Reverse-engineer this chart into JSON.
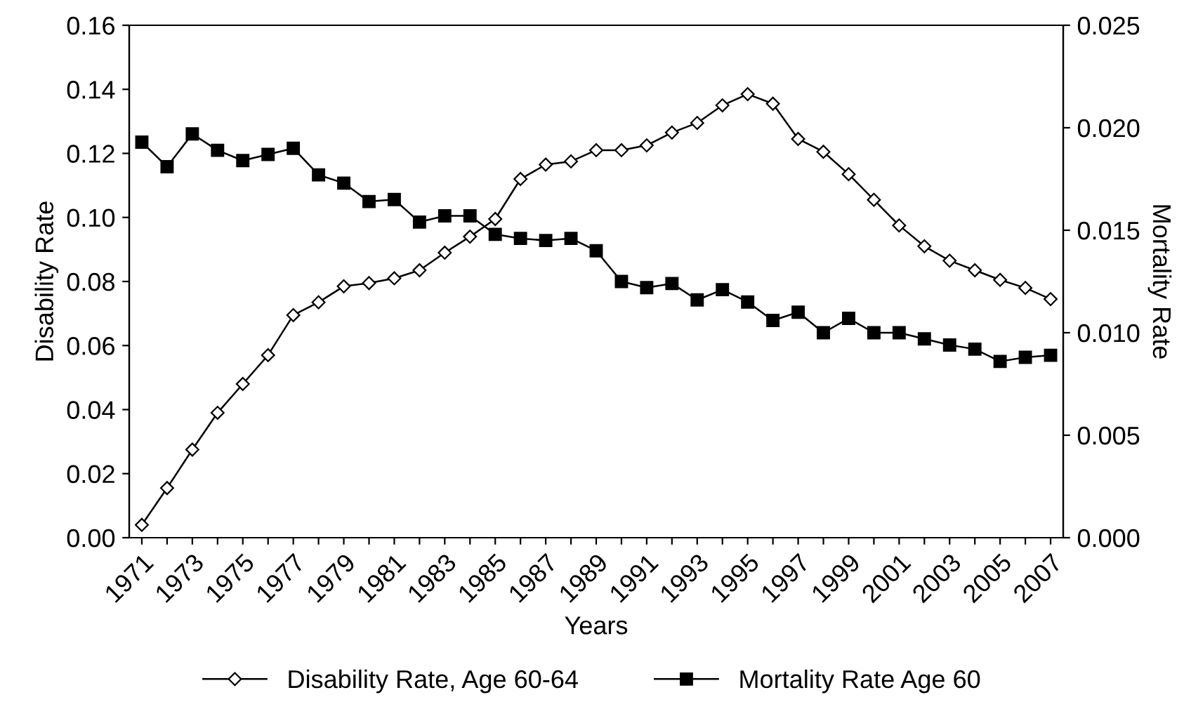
{
  "chart_data": {
    "type": "line",
    "xlabel": "Years",
    "ylabel": "Disability Rate",
    "y2label": "Mortality Rate",
    "categories": [
      "1971",
      null,
      "1973",
      null,
      "1975",
      null,
      "1977",
      null,
      "1979",
      null,
      "1981",
      null,
      "1983",
      null,
      "1985",
      null,
      "1987",
      null,
      "1989",
      null,
      "1991",
      null,
      "1993",
      null,
      "1995",
      null,
      "1997",
      null,
      "1999",
      null,
      "2001",
      null,
      "2003",
      null,
      "2005",
      null,
      "2007"
    ],
    "series": [
      {
        "name": "Disability Rate, Age 60-64",
        "color": "#000000",
        "marker": "diamond",
        "values": [
          0.004,
          0.0155,
          0.0275,
          0.039,
          0.048,
          0.057,
          0.0695,
          0.0735,
          0.0785,
          0.0795,
          0.081,
          0.0835,
          0.089,
          0.094,
          0.0995,
          0.112,
          0.1165,
          0.1175,
          0.121,
          0.121,
          0.1225,
          0.1265,
          0.1295,
          0.135,
          0.1385,
          0.1355,
          0.1245,
          0.1205,
          0.1135,
          0.1055,
          0.0975,
          0.091,
          0.0865,
          0.0835,
          0.0805,
          0.078,
          0.0745
        ]
      },
      {
        "name": "Mortality Rate Age 60",
        "color": "#000000",
        "marker": "square",
        "axis": "y2",
        "values": [
          0.0193,
          0.0181,
          0.0197,
          0.0189,
          0.0184,
          0.0187,
          0.019,
          0.0177,
          0.0173,
          0.0164,
          0.0165,
          0.0154,
          0.0157,
          0.0157,
          0.0148,
          0.0146,
          0.0145,
          0.0146,
          0.014,
          0.0125,
          0.0122,
          0.0124,
          0.0116,
          0.0121,
          0.0115,
          0.0106,
          0.011,
          0.01,
          0.0107,
          0.01,
          0.01,
          0.0097,
          0.0094,
          0.0092,
          0.0086,
          0.0088,
          0.0089
        ]
      }
    ],
    "ylim": [
      0,
      0.16
    ],
    "yticks": [
      {
        "value": 0,
        "label": "0.00"
      },
      {
        "value": 0.02,
        "label": "0.02"
      },
      {
        "value": 0.04,
        "label": "0.04"
      },
      {
        "value": 0.06,
        "label": "0.06"
      },
      {
        "value": 0.08,
        "label": "0.08"
      },
      {
        "value": 0.1,
        "label": "0.10"
      },
      {
        "value": 0.12,
        "label": "0.12"
      },
      {
        "value": 0.14,
        "label": "0.14"
      },
      {
        "value": 0.16,
        "label": "0.16"
      }
    ],
    "y2lim": [
      0,
      0.025
    ],
    "y2ticks": [
      {
        "value": 0,
        "label": "0.000"
      },
      {
        "value": 0.005,
        "label": "0.005"
      },
      {
        "value": 0.01,
        "label": "0.010"
      },
      {
        "value": 0.015,
        "label": "0.015"
      },
      {
        "value": 0.02,
        "label": "0.020"
      },
      {
        "value": 0.025,
        "label": "0.025"
      }
    ],
    "grid": false,
    "legend": "bottom",
    "line_style": "solid"
  }
}
